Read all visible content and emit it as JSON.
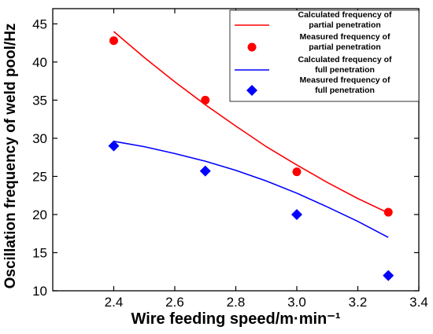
{
  "chart_data": {
    "type": "scatter",
    "xlabel": "Wire feeding speed/m·min⁻¹",
    "ylabel": "Oscillation frequency of weld pool/Hz",
    "xlim": [
      2.2,
      3.4
    ],
    "ylim": [
      10,
      47
    ],
    "xticks": [
      "2.4",
      "2.6",
      "2.8",
      "3.0",
      "3.2",
      "3.4"
    ],
    "xtick_values": [
      2.4,
      2.6,
      2.8,
      3.0,
      3.2,
      3.4
    ],
    "yticks": [
      "10",
      "15",
      "20",
      "25",
      "30",
      "35",
      "40",
      "45"
    ],
    "ytick_values": [
      10,
      15,
      20,
      25,
      30,
      35,
      40,
      45
    ],
    "grid": false,
    "legend_position": "top-right",
    "series": [
      {
        "name": "Calculated frequency of partial penetration",
        "kind": "line",
        "color": "#ff0000",
        "x": [
          2.4,
          2.5,
          2.6,
          2.7,
          2.8,
          2.9,
          3.0,
          3.1,
          3.2,
          3.3
        ],
        "y": [
          44.0,
          40.6,
          37.4,
          34.4,
          31.6,
          28.9,
          26.5,
          24.2,
          22.1,
          20.2
        ]
      },
      {
        "name": "Measured frequency of partial penetration",
        "kind": "scatter",
        "marker": "circle",
        "color": "#ff0000",
        "x": [
          2.4,
          2.7,
          3.0,
          3.3
        ],
        "y": [
          42.8,
          35.0,
          25.6,
          20.3
        ]
      },
      {
        "name": "Calculated frequency of full penetration",
        "kind": "line",
        "color": "#0000ff",
        "x": [
          2.4,
          2.5,
          2.6,
          2.7,
          2.8,
          2.9,
          3.0,
          3.1,
          3.2,
          3.3
        ],
        "y": [
          29.6,
          28.9,
          28.0,
          27.0,
          25.8,
          24.4,
          22.8,
          21.0,
          19.1,
          17.0
        ]
      },
      {
        "name": "Measured frequency of full penetration",
        "kind": "scatter",
        "marker": "diamond",
        "color": "#0000ff",
        "x": [
          2.4,
          2.7,
          3.0,
          3.3
        ],
        "y": [
          29.0,
          25.7,
          20.0,
          12.0
        ]
      }
    ],
    "legend": [
      [
        "Calculated frequency of",
        "partial penetration"
      ],
      [
        "Measured frequency of",
        "partial penetration"
      ],
      [
        "Calculated frequency of",
        "full penetration"
      ],
      [
        "Measured frequency of",
        "full penetration"
      ]
    ]
  }
}
